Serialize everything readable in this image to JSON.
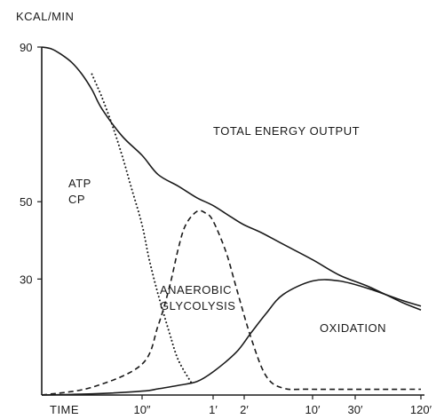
{
  "chart_data": {
    "type": "line",
    "title": "",
    "ylabel": "KCAL/MIN",
    "xlabel": "TIME",
    "ylim": [
      0,
      90
    ],
    "y_ticks": [
      {
        "value": 90,
        "label": "90"
      },
      {
        "value": 50,
        "label": "50"
      },
      {
        "value": 30,
        "label": "30"
      }
    ],
    "x_ticks": [
      {
        "seconds": 10,
        "label": "10″"
      },
      {
        "seconds": 60,
        "label": "1′"
      },
      {
        "seconds": 120,
        "label": "2′"
      },
      {
        "seconds": 600,
        "label": "10′"
      },
      {
        "seconds": 1800,
        "label": "30′"
      },
      {
        "seconds": 7200,
        "label": "120′"
      }
    ],
    "series": [
      {
        "name": "TOTAL ENERGY OUTPUT",
        "style": "solid",
        "points": [
          [
            0,
            90
          ],
          [
            1,
            89.5
          ],
          [
            2,
            88
          ],
          [
            3,
            86
          ],
          [
            4,
            83
          ],
          [
            5,
            79
          ],
          [
            6,
            74
          ],
          [
            8,
            67
          ],
          [
            10,
            62
          ],
          [
            15,
            57
          ],
          [
            25,
            54
          ],
          [
            40,
            51
          ],
          [
            60,
            49
          ],
          [
            90,
            46
          ],
          [
            120,
            44
          ],
          [
            180,
            42
          ],
          [
            300,
            39
          ],
          [
            600,
            35
          ],
          [
            1200,
            31
          ],
          [
            2400,
            28
          ],
          [
            4800,
            24
          ],
          [
            7200,
            22
          ]
        ]
      },
      {
        "name": "ATP CP",
        "style": "dotted",
        "points": [
          [
            5,
            83
          ],
          [
            5.5,
            80
          ],
          [
            6,
            77
          ],
          [
            7,
            70
          ],
          [
            8,
            62
          ],
          [
            9,
            53
          ],
          [
            10,
            44
          ],
          [
            12,
            35
          ],
          [
            15,
            26
          ],
          [
            20,
            16
          ],
          [
            25,
            9
          ],
          [
            35,
            3
          ]
        ]
      },
      {
        "name": "ANAEROBIC GLYCOLYSIS",
        "style": "dashed",
        "points": [
          [
            0,
            0
          ],
          [
            5,
            2
          ],
          [
            10,
            8
          ],
          [
            15,
            18
          ],
          [
            20,
            28
          ],
          [
            25,
            38
          ],
          [
            30,
            44
          ],
          [
            40,
            47.5
          ],
          [
            50,
            47
          ],
          [
            60,
            45
          ],
          [
            80,
            37
          ],
          [
            100,
            28
          ],
          [
            140,
            15
          ],
          [
            200,
            5
          ],
          [
            300,
            1.8
          ],
          [
            600,
            1.5
          ],
          [
            7200,
            1.5
          ]
        ]
      },
      {
        "name": "OXIDATION",
        "style": "solid",
        "points": [
          [
            0,
            0
          ],
          [
            5,
            0.3
          ],
          [
            10,
            1
          ],
          [
            15,
            1.6
          ],
          [
            25,
            2.5
          ],
          [
            40,
            3.5
          ],
          [
            60,
            6
          ],
          [
            100,
            11
          ],
          [
            140,
            16
          ],
          [
            200,
            21
          ],
          [
            300,
            26
          ],
          [
            600,
            29.5
          ],
          [
            1200,
            29.5
          ],
          [
            2400,
            27.5
          ],
          [
            4800,
            24.5
          ],
          [
            7200,
            23
          ]
        ]
      }
    ],
    "annotations": [
      {
        "id": "total",
        "lines": [
          "TOTAL ENERGY OUTPUT"
        ]
      },
      {
        "id": "atp",
        "lines": [
          "ATP",
          "CP"
        ]
      },
      {
        "id": "glyco",
        "lines": [
          "ANAEROBIC",
          "GLYCOLYSIS"
        ]
      },
      {
        "id": "oxid",
        "lines": [
          "OXIDATION"
        ]
      }
    ],
    "grid": false,
    "legend": "none"
  }
}
